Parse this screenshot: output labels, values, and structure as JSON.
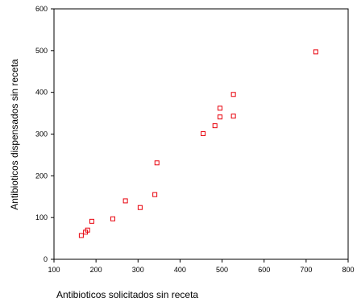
{
  "chart_data": {
    "type": "scatter",
    "title": "",
    "xlabel": "Antibioticos solicitados sin receta",
    "ylabel": "Antibioticos dispensados sin receta",
    "xlim": [
      100,
      800
    ],
    "ylim": [
      0,
      600
    ],
    "xticks": [
      100,
      200,
      300,
      400,
      500,
      600,
      700,
      800
    ],
    "yticks": [
      0,
      100,
      200,
      300,
      400,
      500,
      600
    ],
    "grid": false,
    "marker": "open-square",
    "marker_color": "#e8000b",
    "series": [
      {
        "x": [
          165,
          175,
          180,
          190,
          240,
          270,
          305,
          340,
          345,
          455,
          483,
          495,
          495,
          527,
          527,
          723
        ],
        "y": [
          57,
          65,
          70,
          91,
          97,
          140,
          124,
          155,
          231,
          301,
          320,
          341,
          362,
          343,
          395,
          497
        ]
      }
    ]
  }
}
